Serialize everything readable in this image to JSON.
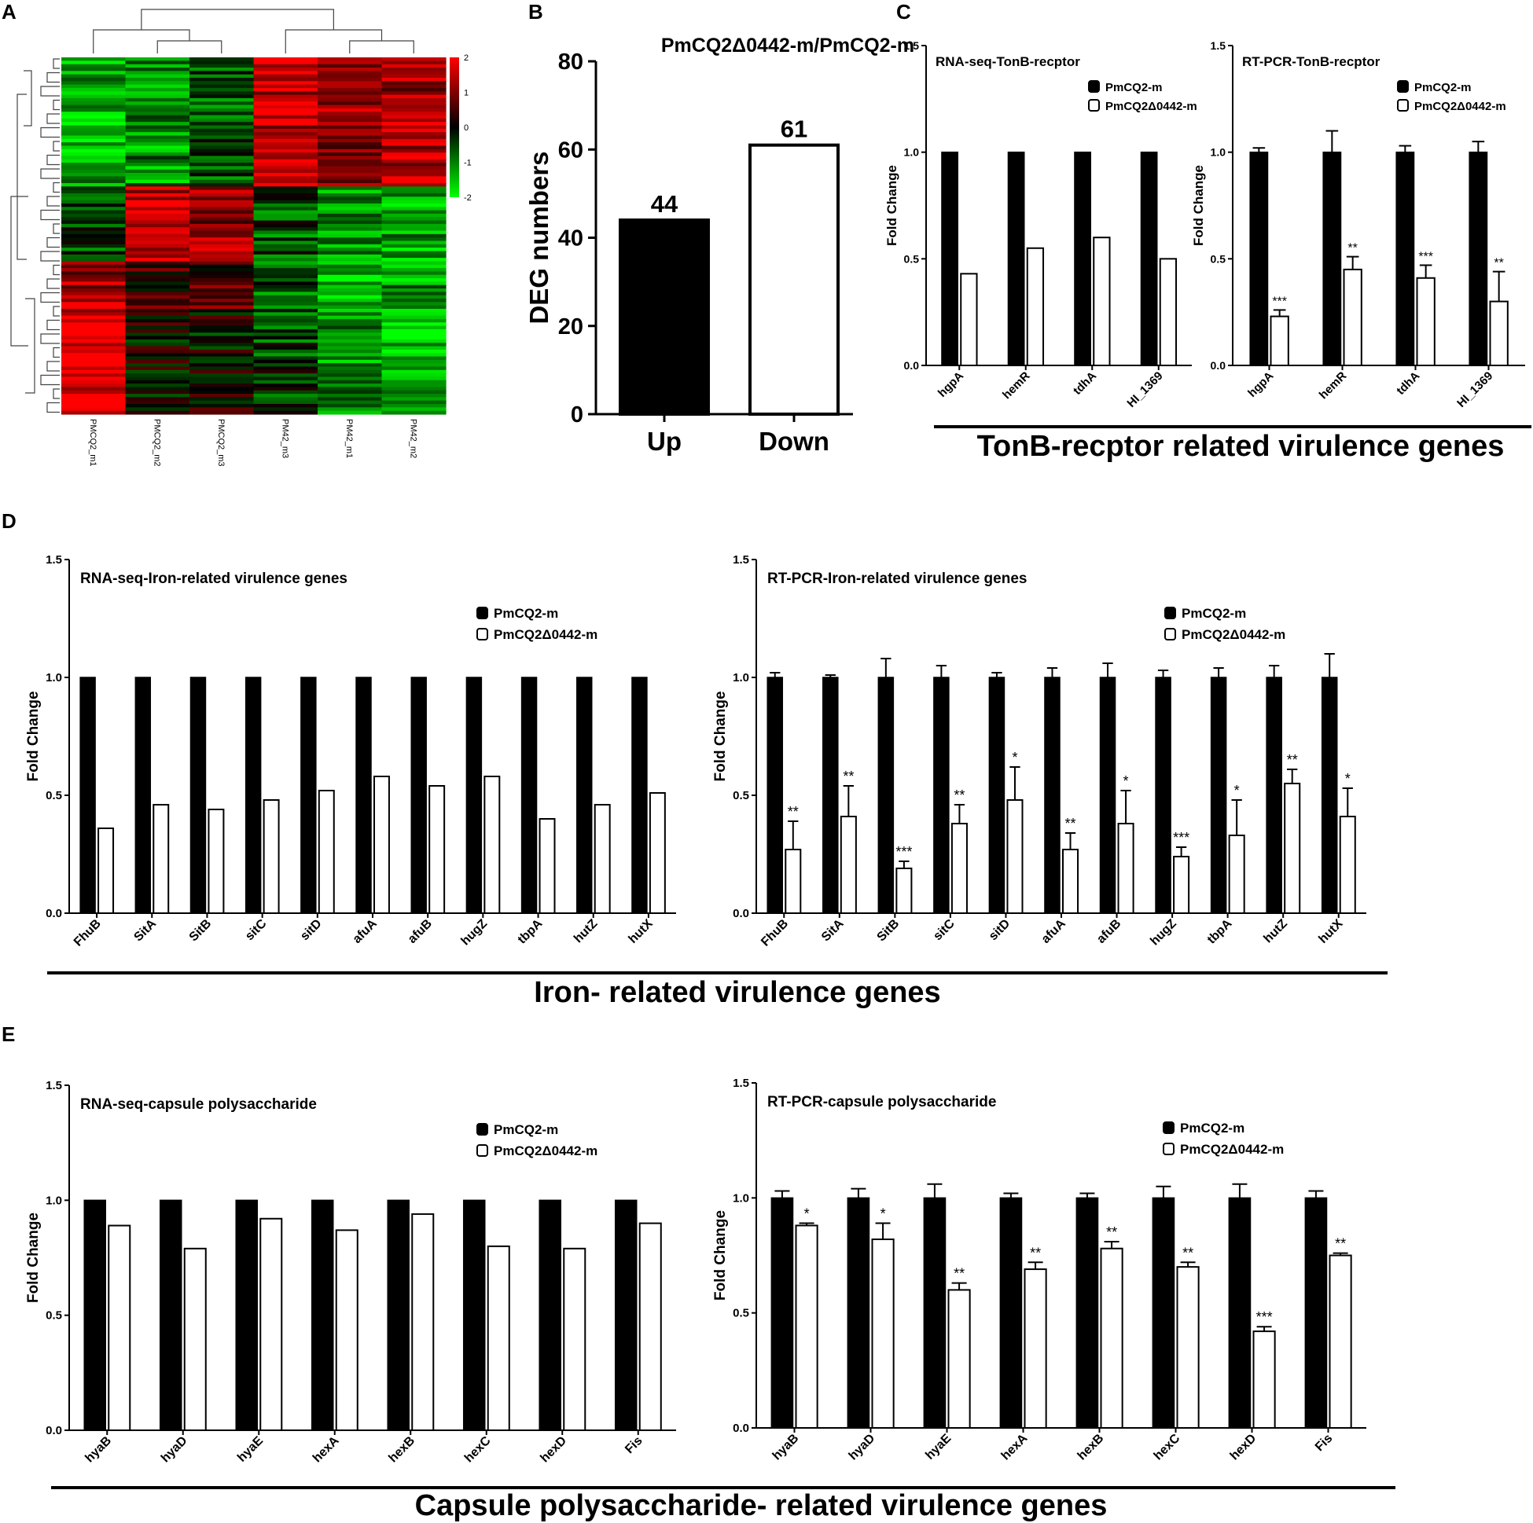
{
  "panel_letters": {
    "A": "A",
    "B": "B",
    "C": "C",
    "D": "D",
    "E": "E"
  },
  "group_titles": {
    "C": "TonB-recptor related virulence genes",
    "D": "Iron- related virulence genes",
    "E": "Capsule polysaccharide- related virulence genes"
  },
  "legend_labels": {
    "wt": "PmCQ2-m",
    "mut": "PmCQ2Δ0442-m"
  },
  "ylabel_fold": "Fold Change",
  "colors": {
    "wt": "#000000",
    "mut": "#ffffff",
    "heat_low": "#00ff00",
    "heat_mid": "#000000",
    "heat_high": "#ff0000"
  },
  "chart_data": [
    {
      "panel": "A",
      "type": "heatmap",
      "columns": [
        "PMCQ2_m1",
        "PMCQ2_m2",
        "PMCQ2_m3",
        "PM42_m3",
        "PM42_m1",
        "PM42_m2"
      ],
      "colorbar": {
        "ticks": [
          "2",
          "1",
          "0",
          "-1",
          "-2"
        ],
        "range": [
          -2,
          2
        ]
      },
      "row_count": 105
    },
    {
      "panel": "B",
      "type": "bar",
      "title": "PmCQ2Δ0442-m/PmCQ2-m",
      "ylabel": "DEG numbers",
      "categories": [
        "Up",
        "Down"
      ],
      "values": [
        44,
        61
      ],
      "value_labels": [
        "44",
        "61"
      ],
      "bar_fill": [
        "#000000",
        "#ffffff"
      ],
      "ylim": [
        0,
        80
      ],
      "yticks": [
        "0",
        "20",
        "40",
        "60",
        "80"
      ]
    },
    {
      "panel": "C1",
      "type": "bar",
      "title": "RNA-seq-TonB-recptor",
      "ylabel": "Fold Change",
      "categories": [
        "hgpA",
        "hemR",
        "tdhA",
        "HI_1369"
      ],
      "series": [
        {
          "name": "PmCQ2-m",
          "values": [
            1.0,
            1.0,
            1.0,
            1.0
          ]
        },
        {
          "name": "PmCQ2Δ0442-m",
          "values": [
            0.43,
            0.55,
            0.6,
            0.5
          ]
        }
      ],
      "ylim": [
        0,
        1.5
      ],
      "yticks": [
        "0.0",
        "0.5",
        "1.0",
        "1.5"
      ]
    },
    {
      "panel": "C2",
      "type": "bar",
      "title": "RT-PCR-TonB-recptor",
      "ylabel": "Fold Change",
      "categories": [
        "hgpA",
        "hemR",
        "tdhA",
        "HI_1369"
      ],
      "series": [
        {
          "name": "PmCQ2-m",
          "values": [
            1.0,
            1.0,
            1.0,
            1.0
          ],
          "errors": [
            0.02,
            0.1,
            0.03,
            0.05
          ]
        },
        {
          "name": "PmCQ2Δ0442-m",
          "values": [
            0.23,
            0.45,
            0.41,
            0.3
          ],
          "errors": [
            0.03,
            0.06,
            0.06,
            0.14
          ]
        }
      ],
      "significance": [
        "***",
        "**",
        "***",
        "**"
      ],
      "ylim": [
        0,
        1.5
      ],
      "yticks": [
        "0.0",
        "0.5",
        "1.0",
        "1.5"
      ]
    },
    {
      "panel": "D1",
      "type": "bar",
      "title": "RNA-seq-Iron-related virulence genes",
      "ylabel": "Fold Change",
      "categories": [
        "FhuB",
        "SitA",
        "SitB",
        "sitC",
        "sitD",
        "afuA",
        "afuB",
        "hugZ",
        "tbpA",
        "hutZ",
        "hutX"
      ],
      "series": [
        {
          "name": "PmCQ2-m",
          "values": [
            1.0,
            1.0,
            1.0,
            1.0,
            1.0,
            1.0,
            1.0,
            1.0,
            1.0,
            1.0,
            1.0
          ]
        },
        {
          "name": "PmCQ2Δ0442-m",
          "values": [
            0.36,
            0.46,
            0.44,
            0.48,
            0.52,
            0.58,
            0.54,
            0.58,
            0.4,
            0.46,
            0.51
          ]
        }
      ],
      "ylim": [
        0,
        1.5
      ],
      "yticks": [
        "0.0",
        "0.5",
        "1.0",
        "1.5"
      ]
    },
    {
      "panel": "D2",
      "type": "bar",
      "title": "RT-PCR-Iron-related virulence genes",
      "ylabel": "Fold Change",
      "categories": [
        "FhuB",
        "SitA",
        "SitB",
        "sitC",
        "sitD",
        "afuA",
        "afuB",
        "hugZ",
        "tbpA",
        "hutZ",
        "hutX"
      ],
      "series": [
        {
          "name": "PmCQ2-m",
          "values": [
            1.0,
            1.0,
            1.0,
            1.0,
            1.0,
            1.0,
            1.0,
            1.0,
            1.0,
            1.0,
            1.0
          ],
          "errors": [
            0.02,
            0.01,
            0.08,
            0.05,
            0.02,
            0.04,
            0.06,
            0.03,
            0.04,
            0.05,
            0.1
          ]
        },
        {
          "name": "PmCQ2Δ0442-m",
          "values": [
            0.27,
            0.41,
            0.19,
            0.38,
            0.48,
            0.27,
            0.38,
            0.24,
            0.33,
            0.55,
            0.41
          ],
          "errors": [
            0.12,
            0.13,
            0.03,
            0.08,
            0.14,
            0.07,
            0.14,
            0.04,
            0.15,
            0.06,
            0.12
          ]
        }
      ],
      "significance": [
        "**",
        "**",
        "***",
        "**",
        "*",
        "**",
        "*",
        "***",
        "*",
        "**",
        "*"
      ],
      "ylim": [
        0,
        1.5
      ],
      "yticks": [
        "0.0",
        "0.5",
        "1.0",
        "1.5"
      ]
    },
    {
      "panel": "E1",
      "type": "bar",
      "title": "RNA-seq-capsule polysaccharide",
      "ylabel": "Fold Change",
      "categories": [
        "hyaB",
        "hyaD",
        "hyaE",
        "hexA",
        "hexB",
        "hexC",
        "hexD",
        "Fis"
      ],
      "series": [
        {
          "name": "PmCQ2-m",
          "values": [
            1.0,
            1.0,
            1.0,
            1.0,
            1.0,
            1.0,
            1.0,
            1.0
          ]
        },
        {
          "name": "PmCQ2Δ0442-m",
          "values": [
            0.89,
            0.79,
            0.92,
            0.87,
            0.94,
            0.8,
            0.79,
            0.9
          ]
        }
      ],
      "ylim": [
        0,
        1.5
      ],
      "yticks": [
        "0.0",
        "0.5",
        "1.0",
        "1.5"
      ]
    },
    {
      "panel": "E2",
      "type": "bar",
      "title": "RT-PCR-capsule polysaccharide",
      "ylabel": "Fold Change",
      "categories": [
        "hyaB",
        "hyaD",
        "hyaE",
        "hexA",
        "hexB",
        "hexC",
        "hexD",
        "Fis"
      ],
      "series": [
        {
          "name": "PmCQ2-m",
          "values": [
            1.0,
            1.0,
            1.0,
            1.0,
            1.0,
            1.0,
            1.0,
            1.0
          ],
          "errors": [
            0.03,
            0.04,
            0.06,
            0.02,
            0.02,
            0.05,
            0.06,
            0.03
          ]
        },
        {
          "name": "PmCQ2Δ0442-m",
          "values": [
            0.88,
            0.82,
            0.6,
            0.69,
            0.78,
            0.7,
            0.42,
            0.75
          ],
          "errors": [
            0.01,
            0.07,
            0.03,
            0.03,
            0.03,
            0.02,
            0.02,
            0.01
          ]
        }
      ],
      "significance": [
        "*",
        "*",
        "**",
        "**",
        "**",
        "**",
        "***",
        "**"
      ],
      "ylim": [
        0,
        1.5
      ],
      "yticks": [
        "0.0",
        "0.5",
        "1.0",
        "1.5"
      ]
    }
  ]
}
